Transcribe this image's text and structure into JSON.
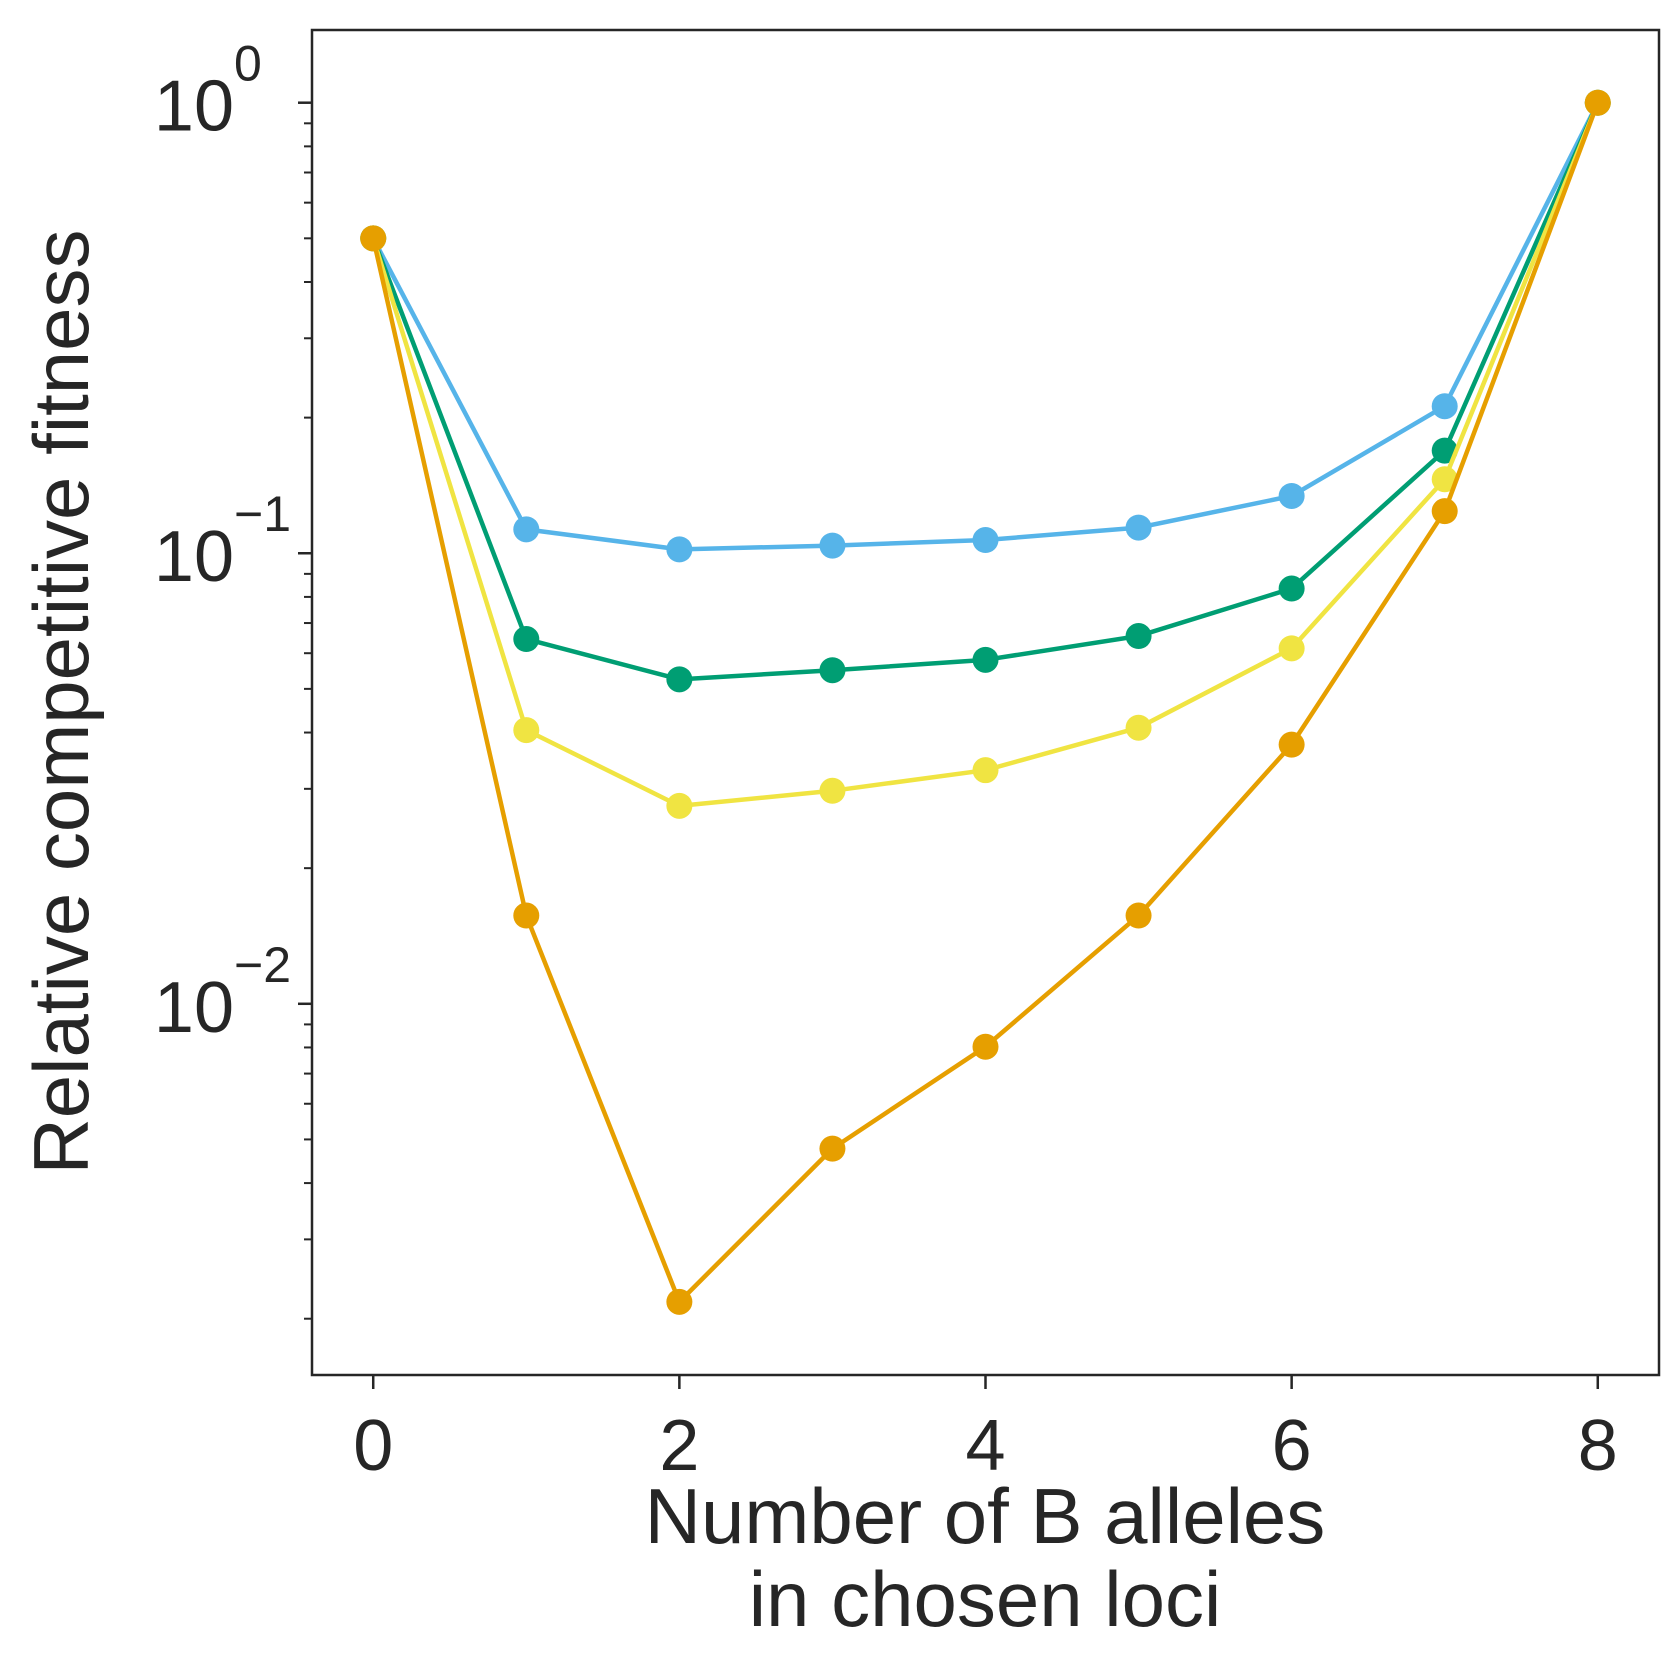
{
  "chart_data": {
    "type": "line",
    "title": "",
    "xlabel_line1": "Number of B alleles",
    "xlabel_line2": "in chosen loci",
    "ylabel": "Relative competitive fitness",
    "yscale": "log",
    "xlim": [
      -0.4,
      8.4
    ],
    "ylim": [
      0.0015,
      1.45
    ],
    "xticks": [
      0,
      2,
      4,
      6,
      8
    ],
    "yticks": [
      {
        "value": 1,
        "base": "10",
        "exp": "0"
      },
      {
        "value": 0.1,
        "base": "10",
        "exp": "−1"
      },
      {
        "value": 0.01,
        "base": "10",
        "exp": "−2"
      }
    ],
    "x": [
      0,
      1,
      2,
      3,
      4,
      5,
      6,
      7,
      8
    ],
    "series": [
      {
        "color": "#56B4E9",
        "values": [
          0.5,
          0.113,
          0.102,
          0.104,
          0.107,
          0.114,
          0.134,
          0.212,
          1.0
        ]
      },
      {
        "color": "#009E73",
        "values": [
          0.5,
          0.0645,
          0.0525,
          0.055,
          0.058,
          0.0655,
          0.0835,
          0.169,
          1.0
        ]
      },
      {
        "color": "#F0E442",
        "values": [
          0.5,
          0.0405,
          0.0275,
          0.0297,
          0.033,
          0.041,
          0.0615,
          0.146,
          1.0
        ]
      },
      {
        "color": "#E69F00",
        "values": [
          0.5,
          0.0157,
          0.00218,
          0.00477,
          0.00803,
          0.0157,
          0.0376,
          0.124,
          1.0
        ]
      }
    ],
    "grid": false,
    "legend": "none"
  }
}
